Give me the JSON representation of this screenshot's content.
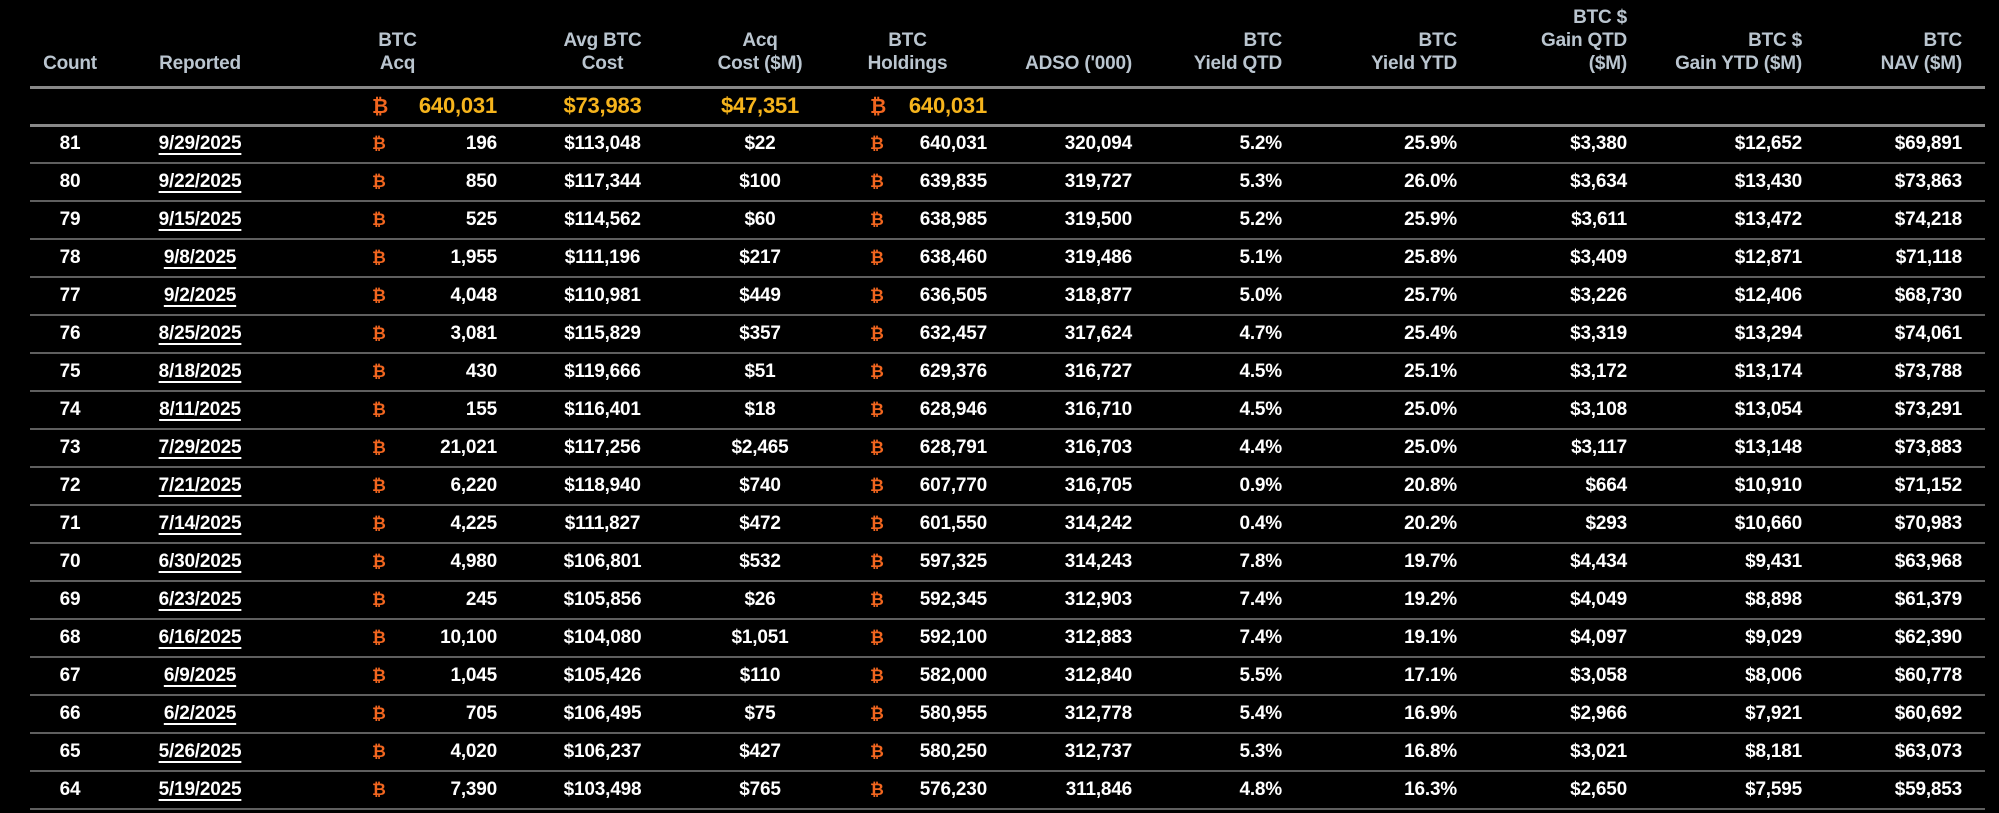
{
  "btc_symbol": "₿",
  "colors": {
    "background": "#000000",
    "header_text": "#bac5cf",
    "data_text": "#ffffff",
    "btc_orange": "#f2661f",
    "summary_gold": "#f6b41c",
    "heavy_line": "#888888",
    "row_line": "#5f5f5f"
  },
  "table": {
    "headers": {
      "count": "Count",
      "reported": "Reported",
      "btc_acq": "BTC\nAcq",
      "avg_btc_cost": "Avg BTC\nCost",
      "acq_cost": "Acq\nCost ($M)",
      "btc_holdings": "BTC\nHoldings",
      "adso": "ADSO ('000)",
      "btc_yield_qtd": "BTC\nYield QTD",
      "btc_yield_ytd": "BTC\nYield YTD",
      "btc_gain_qtd": "BTC $\nGain QTD\n($M)",
      "btc_gain_ytd": "BTC $\nGain YTD ($M)",
      "btc_nav": "BTC\nNAV ($M)"
    },
    "summary": {
      "btc_acq": "640,031",
      "avg_btc_cost": "$73,983",
      "acq_cost": "$47,351",
      "btc_holdings": "640,031"
    },
    "rows": [
      {
        "count": "81",
        "reported": "9/29/2025",
        "btc_acq": "196",
        "avg_btc_cost": "$113,048",
        "acq_cost": "$22",
        "btc_holdings": "640,031",
        "adso": "320,094",
        "yield_qtd": "5.2%",
        "yield_ytd": "25.9%",
        "gain_qtd": "$3,380",
        "gain_ytd": "$12,652",
        "nav": "$69,891"
      },
      {
        "count": "80",
        "reported": "9/22/2025",
        "btc_acq": "850",
        "avg_btc_cost": "$117,344",
        "acq_cost": "$100",
        "btc_holdings": "639,835",
        "adso": "319,727",
        "yield_qtd": "5.3%",
        "yield_ytd": "26.0%",
        "gain_qtd": "$3,634",
        "gain_ytd": "$13,430",
        "nav": "$73,863"
      },
      {
        "count": "79",
        "reported": "9/15/2025",
        "btc_acq": "525",
        "avg_btc_cost": "$114,562",
        "acq_cost": "$60",
        "btc_holdings": "638,985",
        "adso": "319,500",
        "yield_qtd": "5.2%",
        "yield_ytd": "25.9%",
        "gain_qtd": "$3,611",
        "gain_ytd": "$13,472",
        "nav": "$74,218"
      },
      {
        "count": "78",
        "reported": "9/8/2025",
        "btc_acq": "1,955",
        "avg_btc_cost": "$111,196",
        "acq_cost": "$217",
        "btc_holdings": "638,460",
        "adso": "319,486",
        "yield_qtd": "5.1%",
        "yield_ytd": "25.8%",
        "gain_qtd": "$3,409",
        "gain_ytd": "$12,871",
        "nav": "$71,118"
      },
      {
        "count": "77",
        "reported": "9/2/2025",
        "btc_acq": "4,048",
        "avg_btc_cost": "$110,981",
        "acq_cost": "$449",
        "btc_holdings": "636,505",
        "adso": "318,877",
        "yield_qtd": "5.0%",
        "yield_ytd": "25.7%",
        "gain_qtd": "$3,226",
        "gain_ytd": "$12,406",
        "nav": "$68,730"
      },
      {
        "count": "76",
        "reported": "8/25/2025",
        "btc_acq": "3,081",
        "avg_btc_cost": "$115,829",
        "acq_cost": "$357",
        "btc_holdings": "632,457",
        "adso": "317,624",
        "yield_qtd": "4.7%",
        "yield_ytd": "25.4%",
        "gain_qtd": "$3,319",
        "gain_ytd": "$13,294",
        "nav": "$74,061"
      },
      {
        "count": "75",
        "reported": "8/18/2025",
        "btc_acq": "430",
        "avg_btc_cost": "$119,666",
        "acq_cost": "$51",
        "btc_holdings": "629,376",
        "adso": "316,727",
        "yield_qtd": "4.5%",
        "yield_ytd": "25.1%",
        "gain_qtd": "$3,172",
        "gain_ytd": "$13,174",
        "nav": "$73,788"
      },
      {
        "count": "74",
        "reported": "8/11/2025",
        "btc_acq": "155",
        "avg_btc_cost": "$116,401",
        "acq_cost": "$18",
        "btc_holdings": "628,946",
        "adso": "316,710",
        "yield_qtd": "4.5%",
        "yield_ytd": "25.0%",
        "gain_qtd": "$3,108",
        "gain_ytd": "$13,054",
        "nav": "$73,291"
      },
      {
        "count": "73",
        "reported": "7/29/2025",
        "btc_acq": "21,021",
        "avg_btc_cost": "$117,256",
        "acq_cost": "$2,465",
        "btc_holdings": "628,791",
        "adso": "316,703",
        "yield_qtd": "4.4%",
        "yield_ytd": "25.0%",
        "gain_qtd": "$3,117",
        "gain_ytd": "$13,148",
        "nav": "$73,883"
      },
      {
        "count": "72",
        "reported": "7/21/2025",
        "btc_acq": "6,220",
        "avg_btc_cost": "$118,940",
        "acq_cost": "$740",
        "btc_holdings": "607,770",
        "adso": "316,705",
        "yield_qtd": "0.9%",
        "yield_ytd": "20.8%",
        "gain_qtd": "$664",
        "gain_ytd": "$10,910",
        "nav": "$71,152"
      },
      {
        "count": "71",
        "reported": "7/14/2025",
        "btc_acq": "4,225",
        "avg_btc_cost": "$111,827",
        "acq_cost": "$472",
        "btc_holdings": "601,550",
        "adso": "314,242",
        "yield_qtd": "0.4%",
        "yield_ytd": "20.2%",
        "gain_qtd": "$293",
        "gain_ytd": "$10,660",
        "nav": "$70,983"
      },
      {
        "count": "70",
        "reported": "6/30/2025",
        "btc_acq": "4,980",
        "avg_btc_cost": "$106,801",
        "acq_cost": "$532",
        "btc_holdings": "597,325",
        "adso": "314,243",
        "yield_qtd": "7.8%",
        "yield_ytd": "19.7%",
        "gain_qtd": "$4,434",
        "gain_ytd": "$9,431",
        "nav": "$63,968"
      },
      {
        "count": "69",
        "reported": "6/23/2025",
        "btc_acq": "245",
        "avg_btc_cost": "$105,856",
        "acq_cost": "$26",
        "btc_holdings": "592,345",
        "adso": "312,903",
        "yield_qtd": "7.4%",
        "yield_ytd": "19.2%",
        "gain_qtd": "$4,049",
        "gain_ytd": "$8,898",
        "nav": "$61,379"
      },
      {
        "count": "68",
        "reported": "6/16/2025",
        "btc_acq": "10,100",
        "avg_btc_cost": "$104,080",
        "acq_cost": "$1,051",
        "btc_holdings": "592,100",
        "adso": "312,883",
        "yield_qtd": "7.4%",
        "yield_ytd": "19.1%",
        "gain_qtd": "$4,097",
        "gain_ytd": "$9,029",
        "nav": "$62,390"
      },
      {
        "count": "67",
        "reported": "6/9/2025",
        "btc_acq": "1,045",
        "avg_btc_cost": "$105,426",
        "acq_cost": "$110",
        "btc_holdings": "582,000",
        "adso": "312,840",
        "yield_qtd": "5.5%",
        "yield_ytd": "17.1%",
        "gain_qtd": "$3,058",
        "gain_ytd": "$8,006",
        "nav": "$60,778"
      },
      {
        "count": "66",
        "reported": "6/2/2025",
        "btc_acq": "705",
        "avg_btc_cost": "$106,495",
        "acq_cost": "$75",
        "btc_holdings": "580,955",
        "adso": "312,778",
        "yield_qtd": "5.4%",
        "yield_ytd": "16.9%",
        "gain_qtd": "$2,966",
        "gain_ytd": "$7,921",
        "nav": "$60,692"
      },
      {
        "count": "65",
        "reported": "5/26/2025",
        "btc_acq": "4,020",
        "avg_btc_cost": "$106,237",
        "acq_cost": "$427",
        "btc_holdings": "580,250",
        "adso": "312,737",
        "yield_qtd": "5.3%",
        "yield_ytd": "16.8%",
        "gain_qtd": "$3,021",
        "gain_ytd": "$8,181",
        "nav": "$63,073"
      },
      {
        "count": "64",
        "reported": "5/19/2025",
        "btc_acq": "7,390",
        "avg_btc_cost": "$103,498",
        "acq_cost": "$765",
        "btc_holdings": "576,230",
        "adso": "311,846",
        "yield_qtd": "4.8%",
        "yield_ytd": "16.3%",
        "gain_qtd": "$2,650",
        "gain_ytd": "$7,595",
        "nav": "$59,853"
      }
    ]
  }
}
